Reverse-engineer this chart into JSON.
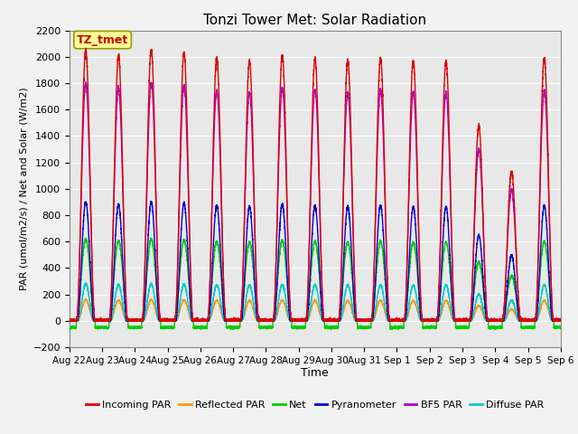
{
  "title": "Tonzi Tower Met: Solar Radiation",
  "xlabel": "Time",
  "ylabel": "PAR (umol/m2/s) / Net and Solar (W/m2)",
  "ylim": [
    -200,
    2200
  ],
  "yticks": [
    -200,
    0,
    200,
    400,
    600,
    800,
    1000,
    1200,
    1400,
    1600,
    1800,
    2000,
    2200
  ],
  "xtick_labels": [
    "Aug 22",
    "Aug 23",
    "Aug 24",
    "Aug 25",
    "Aug 26",
    "Aug 27",
    "Aug 28",
    "Aug 29",
    "Aug 30",
    "Aug 31",
    "Sep 1",
    "Sep 2",
    "Sep 3",
    "Sep 4",
    "Sep 5",
    "Sep 6"
  ],
  "legend_entries": [
    "Incoming PAR",
    "Reflected PAR",
    "Net",
    "Pyranometer",
    "BF5 PAR",
    "Diffuse PAR"
  ],
  "legend_colors": [
    "#dd0000",
    "#ff9900",
    "#00cc00",
    "#0000cc",
    "#aa00cc",
    "#00cccc"
  ],
  "tz_label": "TZ_tmet",
  "tz_color": "#cc0000",
  "tz_bg": "#ffff99",
  "plot_bg": "#e8e8e8",
  "fig_bg": "#f2f2f2",
  "grid_color": "#ffffff",
  "n_days": 15,
  "incoming_par_peak": 2050,
  "bf5_par_peak": 1800,
  "pyranometer_peak": 900,
  "diffuse_par_peak": 280,
  "net_peak": 620,
  "reflected_par_peak": 160,
  "net_night": -50
}
